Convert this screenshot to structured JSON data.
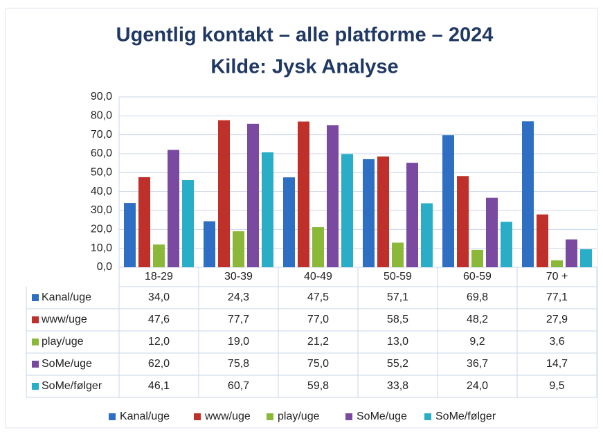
{
  "chart_data": {
    "type": "bar",
    "title": "Ugentlig kontakt – alle platforme – 2024",
    "subtitle": "Kilde: Jysk Analyse",
    "categories": [
      "18-29",
      "30-39",
      "40-49",
      "50-59",
      "60-59",
      "70 +"
    ],
    "series": [
      {
        "name": "Kanal/uge",
        "color": "#2e6fc4",
        "values": [
          34.0,
          24.3,
          47.5,
          57.1,
          69.8,
          77.1
        ],
        "value_labels": [
          "34,0",
          "24,3",
          "47,5",
          "57,1",
          "69,8",
          "77,1"
        ]
      },
      {
        "name": "www/uge",
        "color": "#c0302b",
        "values": [
          47.6,
          77.7,
          77.0,
          58.5,
          48.2,
          27.9
        ],
        "value_labels": [
          "47,6",
          "77,7",
          "77,0",
          "58,5",
          "48,2",
          "27,9"
        ]
      },
      {
        "name": "play/uge",
        "color": "#8cb83a",
        "values": [
          12.0,
          19.0,
          21.2,
          13.0,
          9.2,
          3.6
        ],
        "value_labels": [
          "12,0",
          "19,0",
          "21,2",
          "13,0",
          "9,2",
          "3,6"
        ]
      },
      {
        "name": "SoMe/uge",
        "color": "#7a4aa0",
        "values": [
          62.0,
          75.8,
          75.0,
          55.2,
          36.7,
          14.7
        ],
        "value_labels": [
          "62,0",
          "75,8",
          "75,0",
          "55,2",
          "36,7",
          "14,7"
        ]
      },
      {
        "name": "SoMe/følger",
        "color": "#2aaec8",
        "values": [
          46.1,
          60.7,
          59.8,
          33.8,
          24.0,
          9.5
        ],
        "value_labels": [
          "46,1",
          "60,7",
          "59,8",
          "33,8",
          "24,0",
          "9,5"
        ]
      }
    ],
    "ylim": [
      0,
      90
    ],
    "yticks": [
      {
        "value": 0,
        "label": "0,0"
      },
      {
        "value": 10,
        "label": "10,0"
      },
      {
        "value": 20,
        "label": "20,0"
      },
      {
        "value": 30,
        "label": "30,0"
      },
      {
        "value": 40,
        "label": "40,0"
      },
      {
        "value": 50,
        "label": "50,0"
      },
      {
        "value": 60,
        "label": "60,0"
      },
      {
        "value": 70,
        "label": "70,0"
      },
      {
        "value": 80,
        "label": "80,0"
      },
      {
        "value": 90,
        "label": "90,0"
      }
    ],
    "grid": true,
    "legend": "bottom"
  }
}
